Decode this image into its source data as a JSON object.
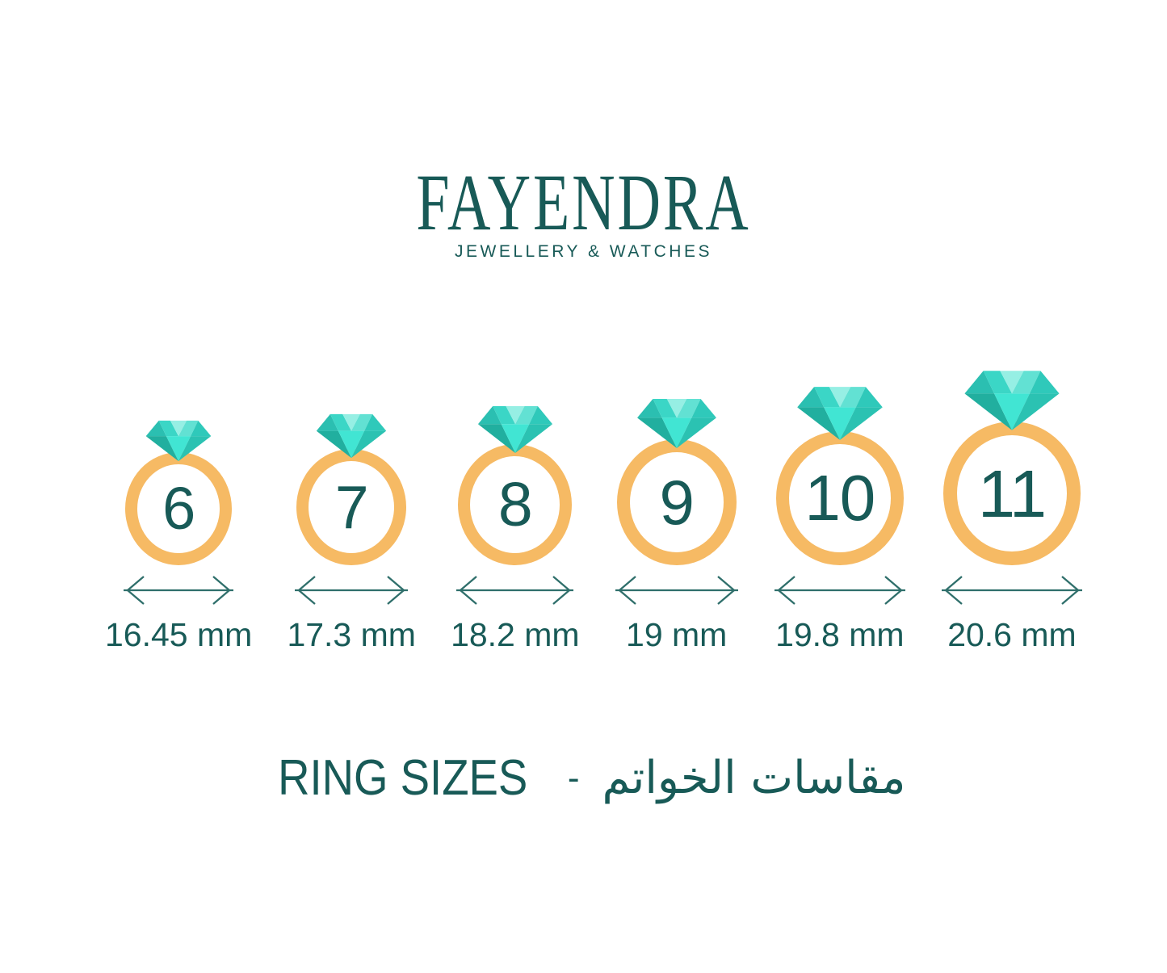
{
  "brand": {
    "name": "FAYENDRA",
    "tagline": "JEWELLERY & WATCHES"
  },
  "rings": [
    {
      "size": "6",
      "diameter": "16.45 mm"
    },
    {
      "size": "7",
      "diameter": "17.3 mm"
    },
    {
      "size": "8",
      "diameter": "18.2 mm"
    },
    {
      "size": "9",
      "diameter": "19 mm"
    },
    {
      "size": "10",
      "diameter": "19.8 mm"
    },
    {
      "size": "11",
      "diameter": "20.6 mm"
    }
  ],
  "caption": {
    "en": "RING SIZES",
    "separator": "-",
    "ar": "مقاسات الخواتم"
  },
  "colors": {
    "teal": "#185A57",
    "band": "#F6BA64",
    "measure": "#2F6F6B",
    "dia-corner-left": "#2BBFB1",
    "dia-crown-left": "#3BD6C6",
    "dia-crown-center": "#96EFE4",
    "dia-crown-right": "#62E1D3",
    "dia-corner-right": "#2FC9BA",
    "dia-pavilion-left": "#21AF9F",
    "dia-pavilion-center": "#41E5D3",
    "dia-pavilion-right": "#2BC2B2"
  }
}
